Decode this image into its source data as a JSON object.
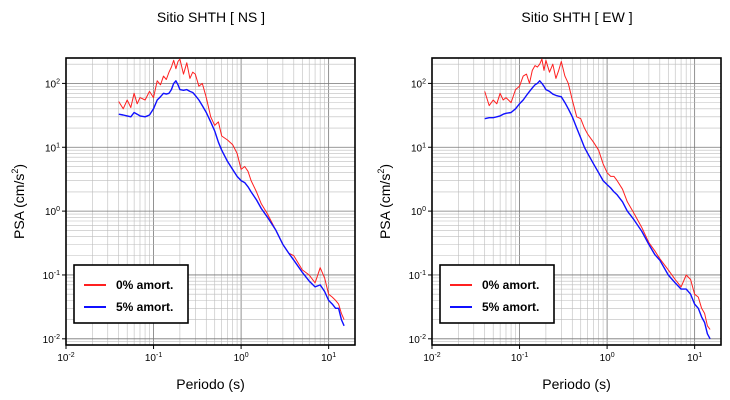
{
  "chart_data": [
    {
      "type": "line",
      "title": "Sitio SHTH [ NS ]",
      "xlabel": "Periodo (s)",
      "ylabel_main": "PSA (cm/s",
      "ylabel_sup": "2",
      "ylabel_tail": ")",
      "xscale": "log",
      "yscale": "log",
      "xlim": [
        0.01,
        20
      ],
      "ylim": [
        0.008,
        250
      ],
      "grid": true,
      "legend_position": "bottom-left",
      "x_ticks": [
        {
          "base": "10",
          "exp": "-2",
          "value": 0.01
        },
        {
          "base": "10",
          "exp": "-1",
          "value": 0.1
        },
        {
          "base": "10",
          "exp": "0",
          "value": 1
        },
        {
          "base": "10",
          "exp": "1",
          "value": 10
        }
      ],
      "y_ticks": [
        {
          "base": "10",
          "exp": "-2",
          "value": 0.01
        },
        {
          "base": "10",
          "exp": "-1",
          "value": 0.1
        },
        {
          "base": "10",
          "exp": "0",
          "value": 1
        },
        {
          "base": "10",
          "exp": "1",
          "value": 10
        },
        {
          "base": "10",
          "exp": "2",
          "value": 100
        }
      ],
      "series": [
        {
          "name": "0% amort.",
          "color": "#ff2020",
          "x": [
            0.04,
            0.045,
            0.05,
            0.055,
            0.06,
            0.065,
            0.07,
            0.08,
            0.09,
            0.1,
            0.11,
            0.12,
            0.13,
            0.14,
            0.15,
            0.16,
            0.17,
            0.18,
            0.19,
            0.2,
            0.22,
            0.24,
            0.26,
            0.28,
            0.3,
            0.33,
            0.36,
            0.4,
            0.45,
            0.5,
            0.55,
            0.6,
            0.7,
            0.8,
            0.9,
            1.0,
            1.1,
            1.2,
            1.3,
            1.5,
            1.7,
            2.0,
            2.5,
            3.0,
            3.5,
            4.0,
            5.0,
            6.0,
            7.0,
            8.0,
            9.0,
            10.0,
            11.0,
            12.0,
            13.0,
            14.0,
            15.0
          ],
          "y": [
            52,
            40,
            55,
            42,
            70,
            48,
            60,
            55,
            75,
            60,
            110,
            95,
            130,
            115,
            150,
            180,
            230,
            170,
            220,
            240,
            140,
            210,
            120,
            150,
            140,
            90,
            100,
            60,
            30,
            22,
            25,
            15,
            13,
            11,
            8,
            4.5,
            5,
            4.2,
            3,
            2,
            1.3,
            0.9,
            0.5,
            0.3,
            0.22,
            0.2,
            0.12,
            0.1,
            0.075,
            0.13,
            0.09,
            0.05,
            0.045,
            0.04,
            0.035,
            0.025,
            0.02
          ]
        },
        {
          "name": "5% amort.",
          "color": "#1010ff",
          "x": [
            0.04,
            0.045,
            0.05,
            0.055,
            0.06,
            0.065,
            0.07,
            0.08,
            0.09,
            0.1,
            0.11,
            0.12,
            0.13,
            0.14,
            0.15,
            0.16,
            0.17,
            0.18,
            0.19,
            0.2,
            0.22,
            0.24,
            0.26,
            0.28,
            0.3,
            0.33,
            0.36,
            0.4,
            0.45,
            0.5,
            0.55,
            0.6,
            0.7,
            0.8,
            0.9,
            1.0,
            1.1,
            1.2,
            1.3,
            1.5,
            1.7,
            2.0,
            2.5,
            3.0,
            3.5,
            4.0,
            5.0,
            6.0,
            7.0,
            8.0,
            9.0,
            10.0,
            11.0,
            12.0,
            13.0,
            14.0,
            15.0
          ],
          "y": [
            33,
            32,
            31,
            30,
            35,
            33,
            31,
            30,
            32,
            40,
            55,
            62,
            70,
            68,
            70,
            80,
            100,
            110,
            95,
            80,
            78,
            80,
            75,
            72,
            65,
            55,
            45,
            35,
            25,
            18,
            12,
            9,
            6,
            4.5,
            3.5,
            3,
            2.8,
            2.4,
            2.0,
            1.5,
            1.1,
            0.8,
            0.5,
            0.3,
            0.22,
            0.17,
            0.11,
            0.08,
            0.065,
            0.07,
            0.055,
            0.04,
            0.035,
            0.03,
            0.03,
            0.02,
            0.016
          ]
        }
      ]
    },
    {
      "type": "line",
      "title": "Sitio SHTH [ EW ]",
      "xlabel": "Periodo (s)",
      "ylabel_main": "PSA (cm/s",
      "ylabel_sup": "2",
      "ylabel_tail": ")",
      "xscale": "log",
      "yscale": "log",
      "xlim": [
        0.01,
        20
      ],
      "ylim": [
        0.008,
        250
      ],
      "grid": true,
      "legend_position": "bottom-left",
      "x_ticks": [
        {
          "base": "10",
          "exp": "-2",
          "value": 0.01
        },
        {
          "base": "10",
          "exp": "-1",
          "value": 0.1
        },
        {
          "base": "10",
          "exp": "0",
          "value": 1
        },
        {
          "base": "10",
          "exp": "1",
          "value": 10
        }
      ],
      "y_ticks": [
        {
          "base": "10",
          "exp": "-2",
          "value": 0.01
        },
        {
          "base": "10",
          "exp": "-1",
          "value": 0.1
        },
        {
          "base": "10",
          "exp": "0",
          "value": 1
        },
        {
          "base": "10",
          "exp": "1",
          "value": 10
        },
        {
          "base": "10",
          "exp": "2",
          "value": 100
        }
      ],
      "series": [
        {
          "name": "0% amort.",
          "color": "#ff2020",
          "x": [
            0.04,
            0.045,
            0.05,
            0.055,
            0.06,
            0.065,
            0.07,
            0.08,
            0.09,
            0.1,
            0.11,
            0.12,
            0.13,
            0.14,
            0.15,
            0.16,
            0.17,
            0.18,
            0.19,
            0.2,
            0.22,
            0.24,
            0.26,
            0.28,
            0.3,
            0.33,
            0.36,
            0.4,
            0.45,
            0.5,
            0.55,
            0.6,
            0.7,
            0.8,
            0.9,
            1.0,
            1.1,
            1.2,
            1.3,
            1.5,
            1.7,
            2.0,
            2.5,
            3.0,
            3.5,
            4.0,
            5.0,
            6.0,
            7.0,
            8.0,
            9.0,
            10.0,
            11.0,
            12.0,
            13.0,
            14.0,
            15.0
          ],
          "y": [
            75,
            45,
            55,
            48,
            70,
            55,
            60,
            50,
            80,
            90,
            130,
            140,
            100,
            160,
            190,
            180,
            200,
            240,
            160,
            230,
            150,
            200,
            120,
            160,
            220,
            130,
            100,
            55,
            30,
            28,
            20,
            16,
            12,
            9,
            5.5,
            4.0,
            3.5,
            3.5,
            3.0,
            2.2,
            1.4,
            0.95,
            0.55,
            0.32,
            0.24,
            0.18,
            0.12,
            0.085,
            0.065,
            0.1,
            0.085,
            0.05,
            0.045,
            0.03,
            0.025,
            0.016,
            0.014
          ]
        },
        {
          "name": "5% amort.",
          "color": "#1010ff",
          "x": [
            0.04,
            0.045,
            0.05,
            0.055,
            0.06,
            0.065,
            0.07,
            0.08,
            0.09,
            0.1,
            0.11,
            0.12,
            0.13,
            0.14,
            0.15,
            0.16,
            0.17,
            0.18,
            0.19,
            0.2,
            0.22,
            0.24,
            0.26,
            0.28,
            0.3,
            0.33,
            0.36,
            0.4,
            0.45,
            0.5,
            0.55,
            0.6,
            0.7,
            0.8,
            0.9,
            1.0,
            1.1,
            1.2,
            1.3,
            1.5,
            1.7,
            2.0,
            2.5,
            3.0,
            3.5,
            4.0,
            5.0,
            6.0,
            7.0,
            8.0,
            9.0,
            10.0,
            11.0,
            12.0,
            13.0,
            14.0,
            15.0
          ],
          "y": [
            28,
            29,
            29,
            30,
            31,
            33,
            34,
            35,
            40,
            48,
            55,
            65,
            75,
            85,
            95,
            100,
            110,
            100,
            90,
            80,
            75,
            68,
            65,
            63,
            62,
            50,
            40,
            30,
            20,
            14,
            10,
            8,
            5.5,
            4.0,
            3.0,
            2.6,
            2.3,
            2.0,
            1.8,
            1.4,
            1.0,
            0.75,
            0.48,
            0.3,
            0.21,
            0.17,
            0.1,
            0.075,
            0.06,
            0.06,
            0.05,
            0.035,
            0.03,
            0.022,
            0.018,
            0.012,
            0.01
          ]
        }
      ]
    }
  ]
}
